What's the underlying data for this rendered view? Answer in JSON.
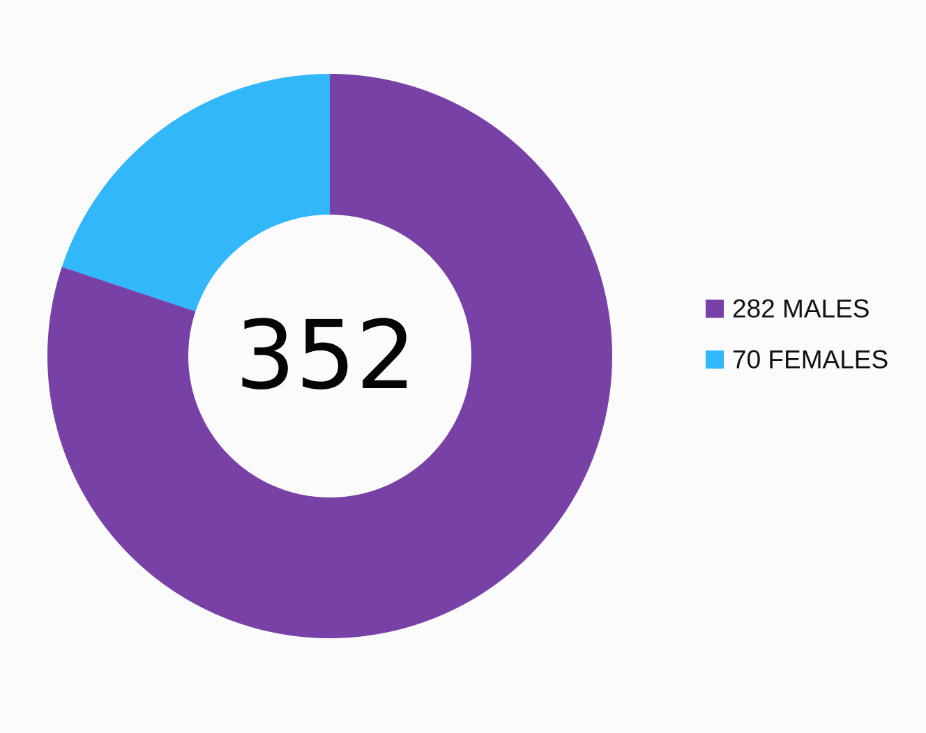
{
  "chart_data": {
    "type": "pie",
    "variant": "donut",
    "center_label": "352",
    "slices": [
      {
        "label": "282 MALES",
        "value": 282,
        "color": "#7841a6"
      },
      {
        "label": "70 FEMALES",
        "value": 70,
        "color": "#33b7fb"
      }
    ],
    "legend_position": "right"
  }
}
